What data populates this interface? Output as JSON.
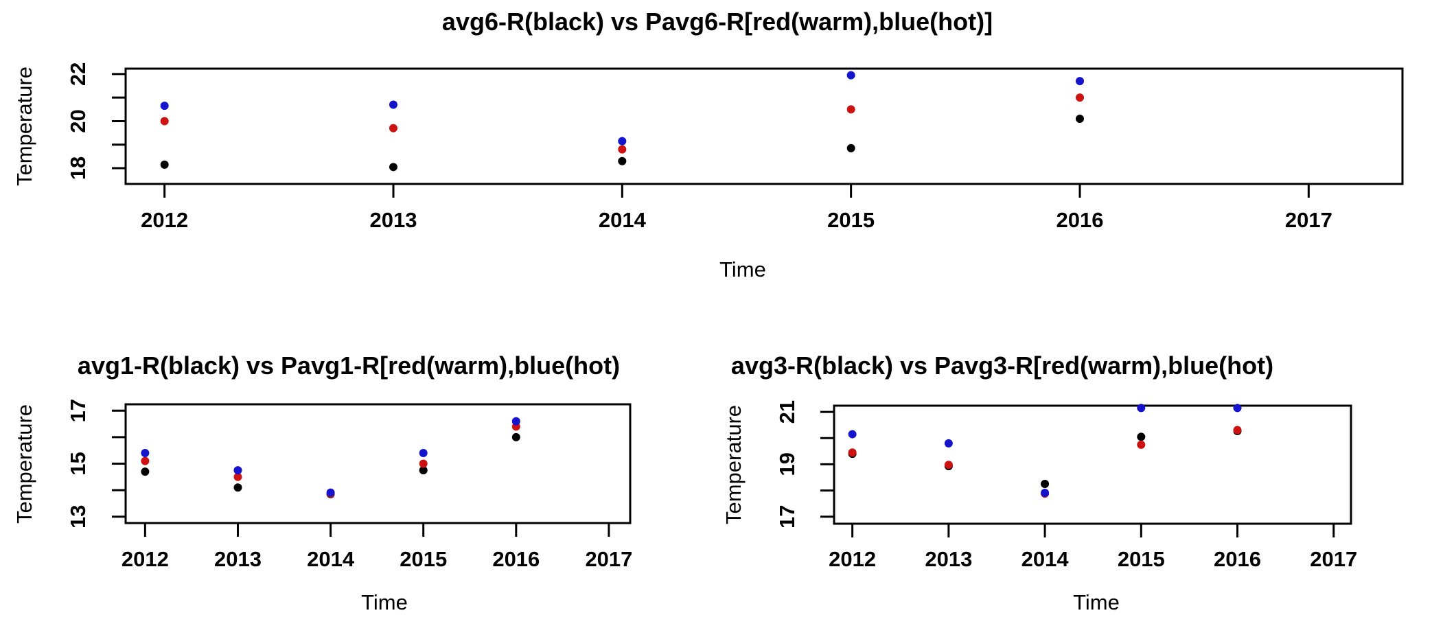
{
  "figure": {
    "background": "#ffffff",
    "point_radius": 6,
    "series_colors": {
      "black": "#000000",
      "red": "#cd1212",
      "blue": "#1414cd"
    }
  },
  "chart_data": [
    {
      "id": "avg6",
      "type": "scatter",
      "title": "avg6-R(black) vs Pavg6-R[red(warm),blue(hot)]",
      "xlabel": "Time",
      "ylabel": "Temperature",
      "x": [
        2012,
        2013,
        2014,
        2015,
        2016
      ],
      "series": [
        {
          "name": "avg6-R",
          "color": "black",
          "values": [
            18.15,
            18.05,
            18.3,
            18.85,
            20.1
          ]
        },
        {
          "name": "Pavg6-R-warm",
          "color": "red",
          "values": [
            20.0,
            19.7,
            18.8,
            20.5,
            21.0
          ]
        },
        {
          "name": "Pavg6-R-hot",
          "color": "blue",
          "values": [
            20.65,
            20.7,
            19.15,
            21.95,
            21.7
          ]
        }
      ],
      "xticks": [
        2012,
        2013,
        2014,
        2015,
        2016,
        2017
      ],
      "yticks": [
        18,
        19,
        20,
        21,
        22
      ],
      "ytick_labeled": [
        18,
        20,
        22
      ],
      "xlim": [
        2011.83,
        2017.41
      ],
      "ylim": [
        17.33,
        22.23
      ],
      "grid": false,
      "legend": "none"
    },
    {
      "id": "avg1",
      "type": "scatter",
      "title": "avg1-R(black) vs Pavg1-R[red(warm),blue(hot)",
      "xlabel": "Time",
      "ylabel": "Temperature",
      "x": [
        2012,
        2013,
        2014,
        2015,
        2016
      ],
      "series": [
        {
          "name": "avg1-R",
          "color": "black",
          "values": [
            14.7,
            14.1,
            13.85,
            14.75,
            16.0
          ]
        },
        {
          "name": "Pavg1-R-warm",
          "color": "red",
          "values": [
            15.1,
            14.5,
            13.87,
            15.0,
            16.4
          ]
        },
        {
          "name": "Pavg1-R-hot",
          "color": "blue",
          "values": [
            15.4,
            14.75,
            13.91,
            15.4,
            16.6
          ]
        }
      ],
      "xticks": [
        2012,
        2013,
        2014,
        2015,
        2016,
        2017
      ],
      "yticks": [
        13,
        14,
        15,
        16,
        17
      ],
      "ytick_labeled": [
        13,
        15,
        17
      ],
      "xlim": [
        2011.79,
        2017.23
      ],
      "ylim": [
        12.76,
        17.24
      ],
      "grid": false,
      "legend": "none"
    },
    {
      "id": "avg3",
      "type": "scatter",
      "title": "avg3-R(black) vs Pavg3-R[red(warm),blue(hot)",
      "xlabel": "Time",
      "ylabel": "Temperature",
      "x": [
        2012,
        2013,
        2014,
        2015,
        2016
      ],
      "series": [
        {
          "name": "avg3-R",
          "color": "black",
          "values": [
            19.4,
            18.93,
            18.25,
            20.05,
            20.27
          ]
        },
        {
          "name": "Pavg3-R-warm",
          "color": "red",
          "values": [
            19.45,
            18.98,
            17.88,
            19.75,
            20.31
          ]
        },
        {
          "name": "Pavg3-R-hot",
          "color": "blue",
          "values": [
            20.15,
            19.8,
            17.91,
            21.15,
            21.15
          ]
        }
      ],
      "xticks": [
        2012,
        2013,
        2014,
        2015,
        2016,
        2017
      ],
      "yticks": [
        17,
        18,
        19,
        20,
        21
      ],
      "ytick_labeled": [
        17,
        19,
        21
      ],
      "xlim": [
        2011.81,
        2017.18
      ],
      "ylim": [
        16.73,
        21.24
      ],
      "grid": false,
      "legend": "none"
    }
  ]
}
